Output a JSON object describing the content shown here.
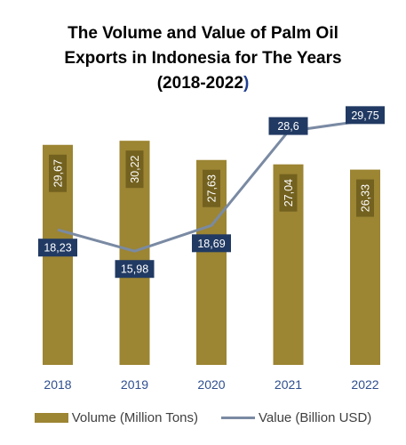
{
  "title": {
    "line1": "The Volume and Value of Palm Oil",
    "line2": "Exports in Indonesia for The Years",
    "line3_main": "(2018-2022",
    "line3_paren": ")"
  },
  "colors": {
    "bar": "#9c8533",
    "bar_label_bg": "#73611f",
    "line": "#7a8aa3",
    "line_label_bg": "#213a63",
    "axis_text": "#2f4f8f",
    "paren": "#1f3f8f"
  },
  "chart_data": {
    "type": "bar",
    "title": "The Volume and Value of Palm Oil Exports in Indonesia for The Years (2018-2022)",
    "categories": [
      "2018",
      "2019",
      "2020",
      "2021",
      "2022"
    ],
    "series": [
      {
        "name": "Volume (Million Tons)",
        "type": "bar",
        "values": [
          29.67,
          30.22,
          27.63,
          27.04,
          26.33
        ],
        "labels": [
          "29,67",
          "30,22",
          "27,63",
          "27,04",
          "26,33"
        ]
      },
      {
        "name": "Value (Billion USD)",
        "type": "line",
        "values": [
          18.23,
          15.98,
          18.69,
          28.6,
          29.75
        ],
        "labels": [
          "18,23",
          "15,98",
          "18,69",
          "28,6",
          "29,75"
        ]
      }
    ],
    "bar_ylim": [
      0,
      38.4
    ],
    "line_ylim": [
      4,
      34
    ],
    "legend": "bottom"
  }
}
